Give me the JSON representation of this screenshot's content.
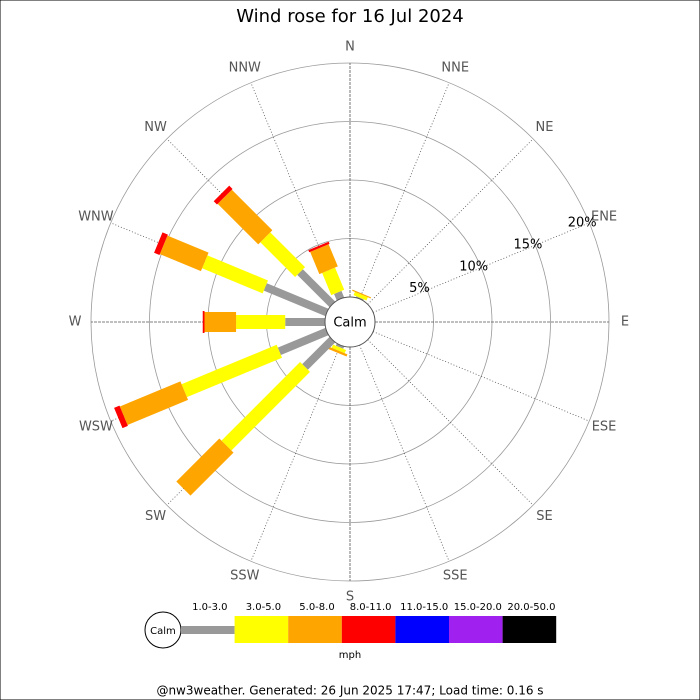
{
  "chart_data": {
    "type": "windrose",
    "title": "Wind rose for 16 Jul 2024",
    "directions": [
      "N",
      "NNE",
      "NE",
      "ENE",
      "E",
      "ESE",
      "SE",
      "SSE",
      "S",
      "SSW",
      "SW",
      "WSW",
      "W",
      "WNW",
      "NW",
      "NNW"
    ],
    "calm_label": "Calm",
    "units": "mph",
    "rlim": [
      0,
      20
    ],
    "rticks": [
      {
        "value": 5,
        "label": "5%"
      },
      {
        "value": 10,
        "label": "10%"
      },
      {
        "value": 15,
        "label": "15%"
      },
      {
        "value": 20,
        "label": "20%"
      }
    ],
    "series": [
      {
        "name": "1.0-3.0",
        "color": "#999999",
        "values": [
          0,
          0.1,
          0,
          0,
          0,
          0,
          0,
          0,
          0,
          0.2,
          3.3,
          4.4,
          3.4,
          5.7,
          3.9,
          0.6
        ]
      },
      {
        "name": "3.0-5.0",
        "color": "#ffff00",
        "values": [
          0,
          0.3,
          0,
          0,
          0,
          0,
          0,
          0,
          0,
          0.3,
          9.5,
          8.8,
          4.2,
          5.6,
          4.2,
          2.05
        ]
      },
      {
        "name": "5.0-8.0",
        "color": "#ffa500",
        "values": [
          0,
          0.1,
          0,
          0,
          0,
          0,
          0,
          0,
          0,
          0.2,
          5.2,
          5.6,
          2.7,
          3.8,
          4.9,
          2.05
        ]
      },
      {
        "name": "8.0-11.0",
        "color": "#ff0000",
        "values": [
          0,
          0,
          0,
          0,
          0,
          0,
          0,
          0,
          0,
          0,
          0,
          0.5,
          0.15,
          0.5,
          0.4,
          0.2
        ]
      },
      {
        "name": "11.0-15.0",
        "color": "#0000ff",
        "values": [
          0,
          0,
          0,
          0,
          0,
          0,
          0,
          0,
          0,
          0,
          0,
          0,
          0,
          0,
          0,
          0
        ]
      },
      {
        "name": "15.0-20.0",
        "color": "#a020f0",
        "values": [
          0,
          0,
          0,
          0,
          0,
          0,
          0,
          0,
          0,
          0,
          0,
          0,
          0,
          0,
          0,
          0
        ]
      },
      {
        "name": "20.0-50.0",
        "color": "#000000",
        "values": [
          0,
          0,
          0,
          0,
          0,
          0,
          0,
          0,
          0,
          0,
          0,
          0,
          0,
          0,
          0,
          0
        ]
      }
    ]
  },
  "footer": "@nw3weather. Generated: 26 Jun 2025 17:47; Load time: 0.16 s"
}
